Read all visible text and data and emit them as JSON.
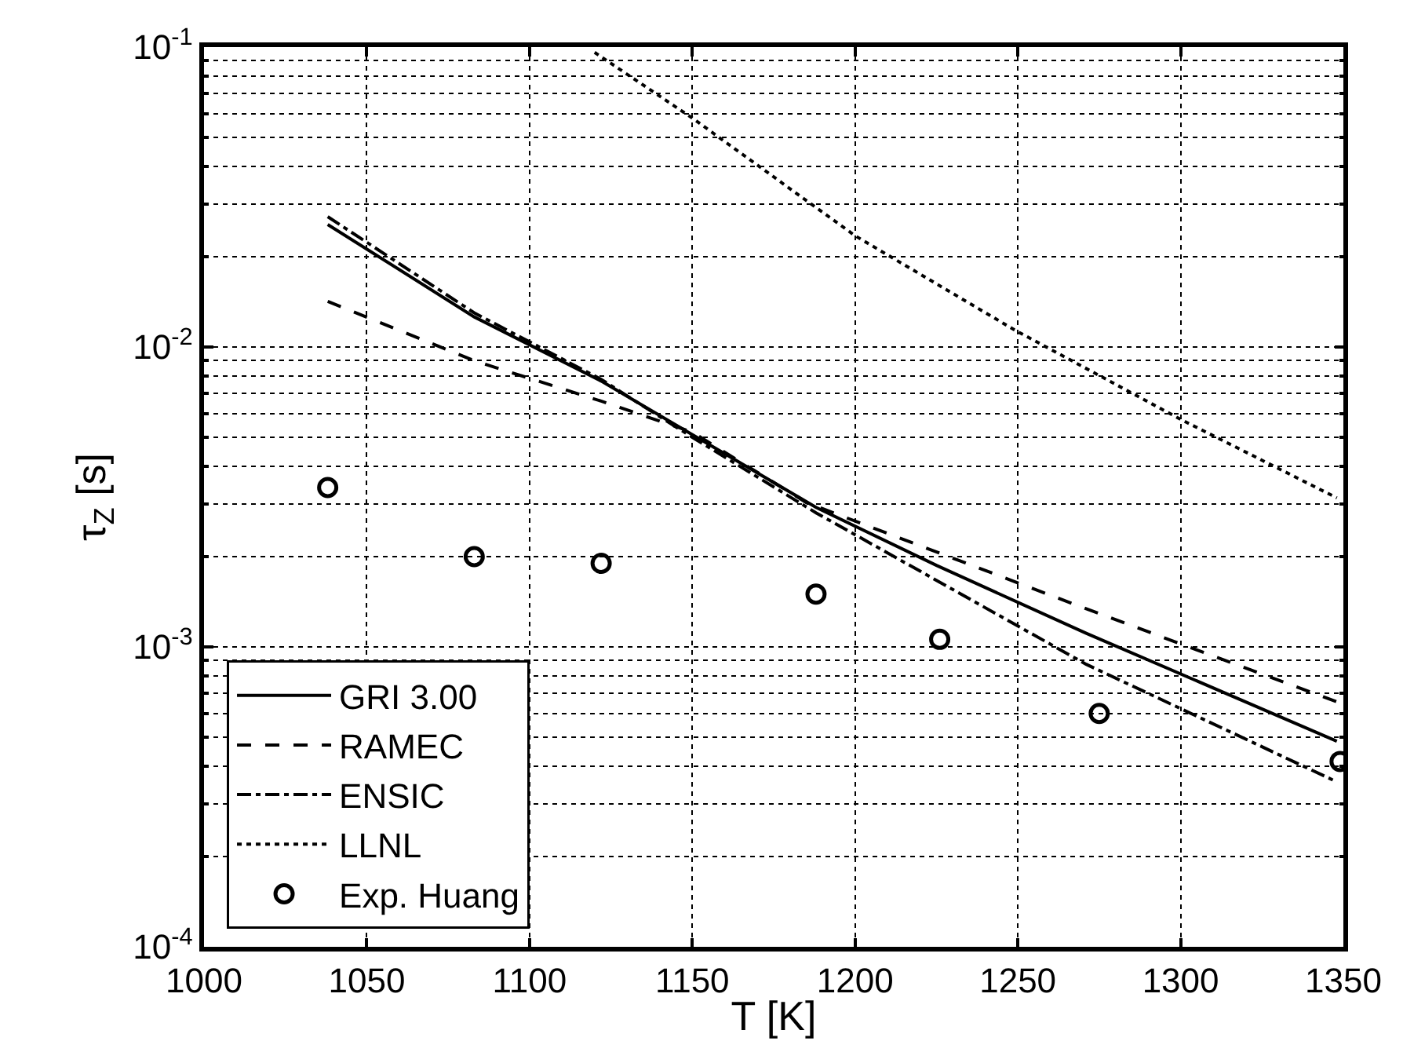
{
  "chart_data": {
    "type": "line",
    "xlabel": "T [K]",
    "ylabel": "τ$_{Z}$ [s]",
    "log": "y",
    "grid": true,
    "legend": "bottom left",
    "marker": "none",
    "xlim": [
      1000,
      1350
    ],
    "xticks": [
      1000,
      1050,
      1100,
      1150,
      1200,
      1250,
      1300,
      1350
    ],
    "ylim": [
      0.0001,
      0.1
    ],
    "yticks": [
      {
        "value": 0.0001,
        "label": "10$^{-4}$"
      },
      {
        "value": 0.001,
        "label": "10$^{-3}$"
      },
      {
        "value": 0.01,
        "label": "10$^{-2}$"
      },
      {
        "value": 0.1,
        "label": "10$^{-1}$"
      }
    ],
    "series": [
      {
        "name": "GRI 3.00",
        "color": "#000000",
        "line_style": "solid",
        "x": [
          1038,
          1083,
          1122,
          1188,
          1225,
          1271,
          1348
        ],
        "values": [
          0.0256,
          0.0126,
          0.0077,
          0.00292,
          0.00187,
          0.00111,
          0.000485
        ]
      },
      {
        "name": "RAMEC",
        "color": "#000000",
        "line_style": "dashed",
        "x": [
          1038,
          1083,
          1122,
          1150,
          1185,
          1271,
          1348
        ],
        "values": [
          0.0142,
          0.009,
          0.0066,
          0.0052,
          0.00303,
          0.00134,
          0.000656
        ]
      },
      {
        "name": "ENSIC",
        "color": "#000000",
        "line_style": "dashdot",
        "x": [
          1038,
          1083,
          1122,
          1150,
          1188,
          1271,
          1347
        ],
        "values": [
          0.0272,
          0.013,
          0.0078,
          0.005,
          0.0028,
          0.000875,
          0.000359
        ]
      },
      {
        "name": "LLNL",
        "color": "#000000",
        "line_style": "dotted",
        "x": [
          1120,
          1150,
          1200,
          1249,
          1300,
          1348
        ],
        "values": [
          0.096,
          0.058,
          0.0235,
          0.0114,
          0.00574,
          0.00314
        ]
      },
      {
        "name": "Exp. Huang",
        "color": "#000000",
        "type": "scatter",
        "marker": "circle",
        "x": [
          1038,
          1083,
          1122,
          1188,
          1226,
          1275,
          1349
        ],
        "values": [
          0.0034,
          0.002,
          0.0019,
          0.0015,
          0.00106,
          0.0006,
          0.000415
        ]
      }
    ]
  }
}
